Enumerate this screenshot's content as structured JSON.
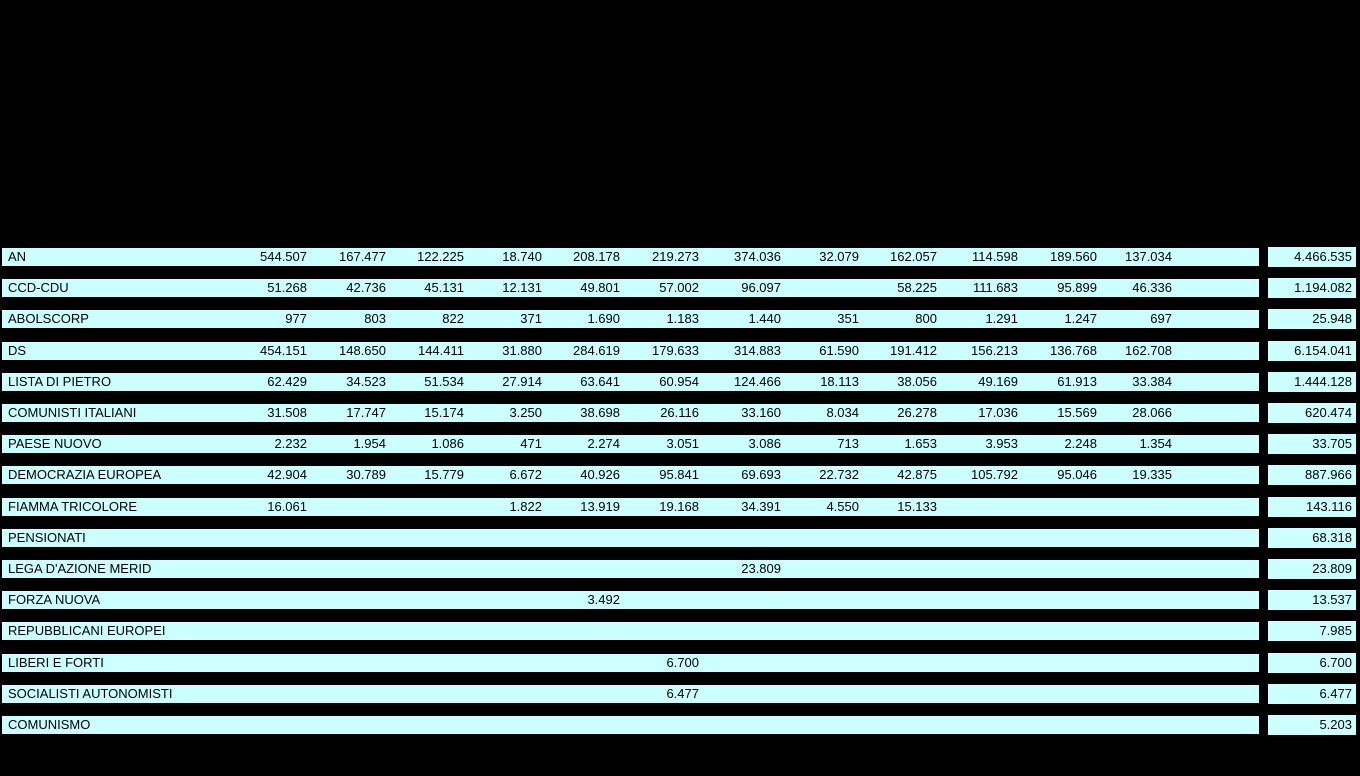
{
  "colors": {
    "page_bg": "#000000",
    "row_bg": "#CCFFFF",
    "row_text": "#000000"
  },
  "table": {
    "description": "party-results-table",
    "num_value_columns": 12,
    "rows": [
      {
        "party": "AN",
        "values": [
          "544.507",
          "167.477",
          "122.225",
          "18.740",
          "208.178",
          "219.273",
          "374.036",
          "32.079",
          "162.057",
          "114.598",
          "189.560",
          "137.034"
        ],
        "total": "4.466.535"
      },
      {
        "party": "CCD-CDU",
        "values": [
          "51.268",
          "42.736",
          "45.131",
          "12.131",
          "49.801",
          "57.002",
          "96.097",
          "",
          "58.225",
          "111.683",
          "95.899",
          "46.336"
        ],
        "total": "1.194.082"
      },
      {
        "party": "ABOLSCORP",
        "values": [
          "977",
          "803",
          "822",
          "371",
          "1.690",
          "1.183",
          "1.440",
          "351",
          "800",
          "1.291",
          "1.247",
          "697"
        ],
        "total": "25.948"
      },
      {
        "party": "DS",
        "values": [
          "454.151",
          "148.650",
          "144.411",
          "31.880",
          "284.619",
          "179.633",
          "314.883",
          "61.590",
          "191.412",
          "156.213",
          "136.768",
          "162.708"
        ],
        "total": "6.154.041"
      },
      {
        "party": "LISTA DI PIETRO",
        "values": [
          "62.429",
          "34.523",
          "51.534",
          "27.914",
          "63.641",
          "60.954",
          "124.466",
          "18.113",
          "38.056",
          "49.169",
          "61.913",
          "33.384"
        ],
        "total": "1.444.128"
      },
      {
        "party": "COMUNISTI ITALIANI",
        "values": [
          "31.508",
          "17.747",
          "15.174",
          "3.250",
          "38.698",
          "26.116",
          "33.160",
          "8.034",
          "26.278",
          "17.036",
          "15.569",
          "28.066"
        ],
        "total": "620.474"
      },
      {
        "party": "PAESE NUOVO",
        "values": [
          "2.232",
          "1.954",
          "1.086",
          "471",
          "2.274",
          "3.051",
          "3.086",
          "713",
          "1.653",
          "3.953",
          "2.248",
          "1.354"
        ],
        "total": "33.705"
      },
      {
        "party": "DEMOCRAZIA EUROPEA",
        "values": [
          "42.904",
          "30.789",
          "15.779",
          "6.672",
          "40.926",
          "95.841",
          "69.693",
          "22.732",
          "42.875",
          "105.792",
          "95.046",
          "19.335"
        ],
        "total": "887.966"
      },
      {
        "party": "FIAMMA TRICOLORE",
        "values": [
          "16.061",
          "",
          "",
          "1.822",
          "13.919",
          "19.168",
          "34.391",
          "4.550",
          "15.133",
          "",
          "",
          ""
        ],
        "total": "143.116"
      },
      {
        "party": "PENSIONATI",
        "values": [
          "",
          "",
          "",
          "",
          "",
          "",
          "",
          "",
          "",
          "",
          "",
          ""
        ],
        "total": "68.318"
      },
      {
        "party": "LEGA D'AZIONE MERID",
        "values": [
          "",
          "",
          "",
          "",
          "",
          "",
          "23.809",
          "",
          "",
          "",
          "",
          ""
        ],
        "total": "23.809"
      },
      {
        "party": "FORZA NUOVA",
        "values": [
          "",
          "",
          "",
          "",
          "3.492",
          "",
          "",
          "",
          "",
          "",
          "",
          ""
        ],
        "total": "13.537"
      },
      {
        "party": "REPUBBLICANI EUROPEI",
        "values": [
          "",
          "",
          "",
          "",
          "",
          "",
          "",
          "",
          "",
          "",
          "",
          ""
        ],
        "total": "7.985"
      },
      {
        "party": "LIBERI E FORTI",
        "values": [
          "",
          "",
          "",
          "",
          "",
          "6.700",
          "",
          "",
          "",
          "",
          "",
          ""
        ],
        "total": "6.700"
      },
      {
        "party": "SOCIALISTI AUTONOMISTI",
        "values": [
          "",
          "",
          "",
          "",
          "",
          "6.477",
          "",
          "",
          "",
          "",
          "",
          ""
        ],
        "total": "6.477"
      },
      {
        "party": "COMUNISMO",
        "values": [
          "",
          "",
          "",
          "",
          "",
          "",
          "",
          "",
          "",
          "",
          "",
          ""
        ],
        "total": "5.203"
      }
    ]
  }
}
